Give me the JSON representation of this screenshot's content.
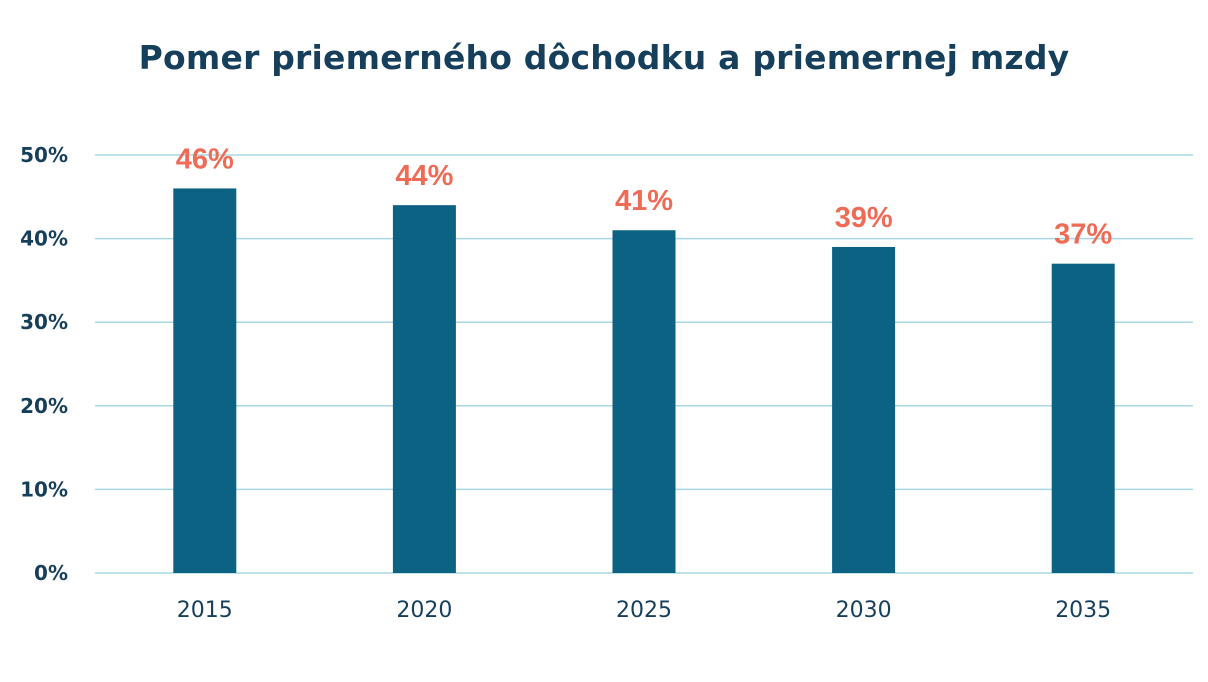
{
  "chart_data": {
    "type": "bar",
    "title": "Pomer priemerného dôchodku a priemernej mzdy",
    "xlabel": "",
    "ylabel": "",
    "categories": [
      "2015",
      "2020",
      "2025",
      "2030",
      "2035"
    ],
    "values": [
      46,
      44,
      41,
      39,
      37
    ],
    "data_labels": [
      "46%",
      "44%",
      "41%",
      "39%",
      "37%"
    ],
    "ylim": [
      0,
      50
    ],
    "yticks": [
      0,
      10,
      20,
      30,
      40,
      50
    ],
    "ytick_labels": [
      "0%",
      "10%",
      "20%",
      "30%",
      "40%",
      "50%"
    ],
    "grid": true,
    "legend": false,
    "colors": {
      "bar": "#0b6282",
      "data_label": "#ee6b55",
      "gridline": "#a8d8e3",
      "text": "#163f5c"
    }
  }
}
